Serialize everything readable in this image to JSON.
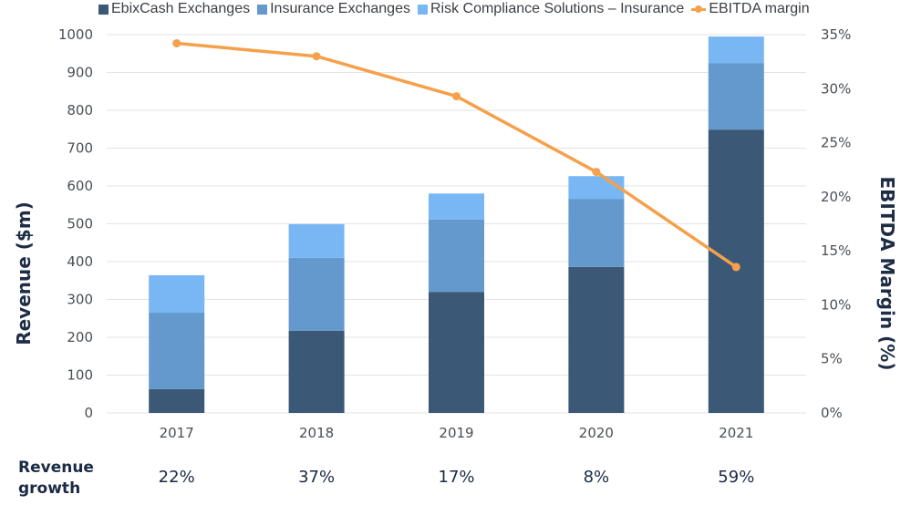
{
  "chart_data": {
    "type": "bar",
    "stacked": true,
    "title": "",
    "categories": [
      "2017",
      "2018",
      "2019",
      "2020",
      "2021"
    ],
    "series": [
      {
        "name": "EbixCash Exchanges",
        "type": "bar",
        "axis": "left",
        "color": "#3b5877",
        "values": [
          63,
          217,
          320,
          386,
          749
        ]
      },
      {
        "name": "Insurance Exchanges",
        "type": "bar",
        "axis": "left",
        "color": "#6399cc",
        "values": [
          202,
          193,
          191,
          180,
          176
        ]
      },
      {
        "name": "Risk Compliance Solutions – Insurance",
        "type": "bar",
        "axis": "left",
        "color": "#78b7f3",
        "values": [
          99,
          89,
          69,
          60,
          70
        ]
      },
      {
        "name": "EBITDA margin",
        "type": "line",
        "axis": "right",
        "color": "#f5a04b",
        "values": [
          34.2,
          33.0,
          29.3,
          22.3,
          13.5
        ]
      }
    ],
    "ylabel": "Revenue ($m)",
    "y2label": "EBITDA Margin (%)",
    "xlabel": "",
    "ylim": [
      0,
      1000
    ],
    "y2lim": [
      0,
      35
    ],
    "yticks": [
      "0",
      "100",
      "200",
      "300",
      "400",
      "500",
      "600",
      "700",
      "800",
      "900",
      "1000"
    ],
    "y2ticks": [
      "0%",
      "5%",
      "10%",
      "15%",
      "20%",
      "25%",
      "30%",
      "35%"
    ],
    "grid": true,
    "legend_position": "top"
  },
  "legend": [
    {
      "label": "EbixCash Exchanges",
      "kind": "bar",
      "color": "#3b5877"
    },
    {
      "label": "Insurance Exchanges",
      "kind": "bar",
      "color": "#6399cc"
    },
    {
      "label": "Risk Compliance Solutions – Insurance",
      "kind": "bar",
      "color": "#78b7f3"
    },
    {
      "label": "EBITDA margin",
      "kind": "line",
      "color": "#f5a04b"
    }
  ],
  "revenue_growth": {
    "label_line1": "Revenue",
    "label_line2": "growth",
    "values": [
      "22%",
      "37%",
      "17%",
      "8%",
      "59%"
    ]
  }
}
